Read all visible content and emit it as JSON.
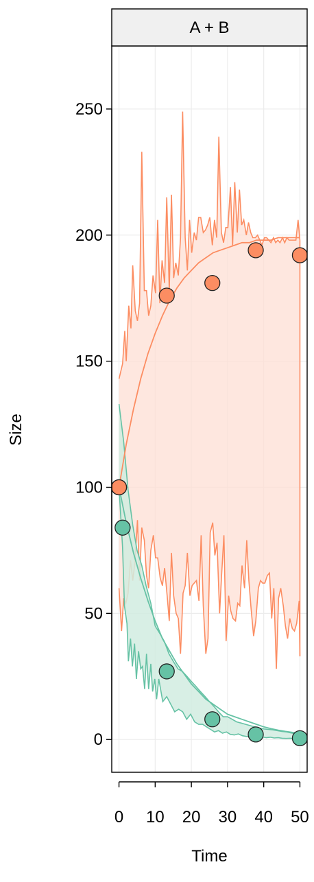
{
  "chart_data": {
    "type": "line",
    "panel_title": "A + B",
    "xlabel": "Time",
    "ylabel": "Size",
    "xlim": [
      -2,
      52
    ],
    "ylim": [
      -13,
      275
    ],
    "xticks": [
      0,
      10,
      20,
      30,
      40,
      50
    ],
    "yticks": [
      0,
      50,
      100,
      150,
      200,
      250
    ],
    "grid": true,
    "series": [
      {
        "key": "orange",
        "color": "#FC8D62",
        "fill": "#FDDFD4",
        "points": {
          "x": [
            0,
            13.2,
            25.8,
            37.8,
            50
          ],
          "y": [
            100,
            176,
            181,
            194,
            192
          ]
        },
        "fit": {
          "x": [
            0,
            2,
            4,
            6,
            8,
            10,
            12,
            14,
            16,
            18,
            20,
            22,
            24,
            26,
            28,
            30,
            32,
            34,
            36,
            38,
            40,
            42,
            44,
            46,
            48,
            50
          ],
          "y": [
            100,
            117,
            131,
            143,
            153,
            161,
            168,
            174,
            179,
            183,
            186,
            189,
            191,
            193,
            194,
            195,
            196,
            197,
            197,
            198,
            198,
            198,
            199,
            199,
            199,
            199
          ]
        },
        "upper": {
          "x": [
            0,
            1,
            1.6,
            2,
            2.7,
            3.3,
            3.8,
            4.5,
            5.1,
            5.7,
            6.3,
            7,
            7.6,
            8.2,
            8.8,
            9.4,
            10.1,
            10.7,
            11.3,
            11.9,
            12.6,
            13.2,
            13.9,
            14.5,
            15.1,
            15.7,
            16.4,
            17,
            17.6,
            18.3,
            18.9,
            19.5,
            20.1,
            20.8,
            21.4,
            22,
            22.6,
            23.3,
            23.9,
            24.5,
            25.1,
            25.8,
            26.4,
            27,
            27.6,
            28.3,
            28.9,
            29.5,
            30.1,
            30.8,
            31.4,
            32,
            32.7,
            33.3,
            33.9,
            34.5,
            35.2,
            35.8,
            36.4,
            37,
            37.7,
            38.3,
            38.9,
            39.5,
            40.2,
            40.8,
            41.4,
            42,
            42.7,
            43.3,
            43.9,
            44.5,
            45.2,
            45.8,
            46.4,
            47,
            47.7,
            48.3,
            48.9,
            49.5,
            50
          ],
          "y": [
            143,
            149,
            162,
            150,
            172,
            163,
            188,
            170,
            166,
            173,
            233,
            178,
            178,
            168,
            172,
            184,
            177,
            206,
            173,
            190,
            181,
            215,
            178,
            216,
            183,
            189,
            184,
            199,
            249,
            199,
            186,
            206,
            193,
            201,
            198,
            207,
            207,
            201,
            202,
            204,
            207,
            196,
            206,
            199,
            239,
            201,
            197,
            203,
            203,
            219,
            196,
            221,
            201,
            218,
            204,
            206,
            200,
            205,
            201,
            199,
            199,
            200,
            198,
            196,
            199,
            199,
            198,
            197,
            199,
            197,
            198,
            197,
            199,
            197,
            199,
            198,
            198,
            198,
            198,
            206,
            198
          ]
        },
        "lower": {
          "x": [
            0,
            0.7,
            1.3,
            1.9,
            2.5,
            3.2,
            3.8,
            4.4,
            5.1,
            5.7,
            6.3,
            7,
            7.6,
            8.2,
            8.8,
            9.5,
            10.1,
            10.7,
            11.4,
            12,
            12.6,
            13.3,
            13.9,
            14.5,
            15.1,
            15.8,
            16.4,
            17,
            17.7,
            18.3,
            18.9,
            19.6,
            20.2,
            20.8,
            21.4,
            22.1,
            22.7,
            23.3,
            24,
            24.6,
            25.2,
            25.9,
            26.5,
            27.1,
            27.8,
            28.4,
            29,
            29.6,
            30.3,
            30.9,
            31.5,
            32.2,
            32.8,
            33.4,
            34,
            34.7,
            35.3,
            35.9,
            36.5,
            37.2,
            37.8,
            38.5,
            39.1,
            39.7,
            40.3,
            41,
            41.6,
            42.2,
            42.8,
            43.5,
            44.1,
            44.7,
            45.4,
            46,
            46.6,
            47.2,
            47.9,
            48.5,
            49.1,
            49.8,
            50
          ],
          "y": [
            60,
            43,
            56,
            54,
            58,
            71,
            63,
            70,
            87,
            63,
            84,
            79,
            65,
            60,
            75,
            81,
            72,
            72,
            64,
            61,
            68,
            57,
            47,
            74,
            57,
            50,
            48,
            34,
            58,
            61,
            74,
            57,
            61,
            62,
            63,
            55,
            81,
            53,
            34,
            40,
            82,
            86,
            73,
            78,
            50,
            66,
            81,
            39,
            57,
            51,
            48,
            47,
            54,
            53,
            69,
            60,
            79,
            63,
            52,
            41,
            47,
            60,
            63,
            62,
            62,
            65,
            66,
            48,
            60,
            28,
            56,
            60,
            53,
            45,
            40,
            48,
            44,
            43,
            46,
            55,
            33
          ]
        }
      },
      {
        "key": "green",
        "color": "#66C2A5",
        "fill": "#D1ECE1",
        "points": {
          "x": [
            0,
            1,
            13.2,
            25.8,
            37.8,
            50
          ],
          "y": [
            100,
            84,
            27,
            8,
            2,
            0.5
          ]
        },
        "fit": {
          "x": [
            0,
            2,
            4,
            6,
            8,
            10,
            12,
            14,
            16,
            18,
            20,
            22,
            24,
            26,
            28,
            30,
            32,
            34,
            36,
            38,
            40,
            42,
            44,
            46,
            48,
            50
          ],
          "y": [
            100,
            86,
            74,
            64,
            55,
            47,
            40,
            35,
            30,
            26,
            22,
            19,
            16,
            14,
            12,
            10,
            9,
            8,
            7,
            6,
            5,
            4.3,
            3.7,
            3.2,
            2.8,
            2.4
          ]
        },
        "upper": {
          "x": [
            0,
            1.3,
            2.5,
            3.8,
            5,
            6.3,
            7.5,
            8.8,
            10,
            11.3,
            12.5,
            13.8,
            15,
            16.3,
            17.5,
            18.8,
            20,
            21.3,
            22.5,
            23.8,
            25,
            26.3,
            27.5,
            28.8,
            30,
            31.3,
            32.5,
            33.8,
            35,
            36.3,
            37.5,
            38.8,
            40,
            41.3,
            42.5,
            43.8,
            45,
            46.3,
            47.5,
            48.8,
            50
          ],
          "y": [
            133,
            118,
            99,
            85,
            75,
            69,
            61,
            54,
            45,
            42,
            39,
            34,
            31,
            28,
            27,
            25,
            23,
            21,
            19,
            17,
            15,
            13,
            11,
            9,
            9,
            8,
            7,
            6.5,
            6,
            5.5,
            5,
            4.5,
            4.2,
            4,
            3.8,
            3.5,
            3.2,
            3,
            2.6,
            2.3,
            2
          ]
        },
        "lower": {
          "x": [
            0,
            1,
            1.5,
            2.2,
            2.6,
            3.2,
            3.7,
            4.3,
            4.8,
            5.4,
            6,
            6.5,
            7.1,
            7.6,
            8.2,
            8.8,
            9.3,
            9.9,
            10.4,
            11,
            12.1,
            13.2,
            14.3,
            15.4,
            16.5,
            17.6,
            18.7,
            19.8,
            20.9,
            22,
            23.1,
            24.2,
            25.3,
            26.4,
            27.5,
            28.6,
            29.7,
            30.8,
            31.9,
            33,
            34.1,
            35.2,
            36.3,
            37.4,
            38.5,
            39.6,
            40.7,
            41.8,
            42.9,
            44,
            45.1,
            46.2,
            47.3,
            48.4,
            49.5,
            50
          ],
          "y": [
            100,
            76,
            53,
            46,
            31,
            40,
            29,
            38,
            24,
            35,
            28,
            29,
            20,
            34,
            20,
            30,
            19,
            24,
            16,
            24,
            15,
            17,
            14,
            11,
            12,
            11,
            8,
            10,
            7,
            6,
            6,
            5,
            4,
            3,
            3.5,
            2.5,
            3,
            2,
            1.8,
            2.2,
            1.5,
            1.2,
            1,
            1.3,
            0.8,
            1,
            0.7,
            0.9,
            0.6,
            0.7,
            0.5,
            0.4,
            0.5,
            0.3,
            0.4,
            0.3
          ]
        }
      }
    ]
  }
}
